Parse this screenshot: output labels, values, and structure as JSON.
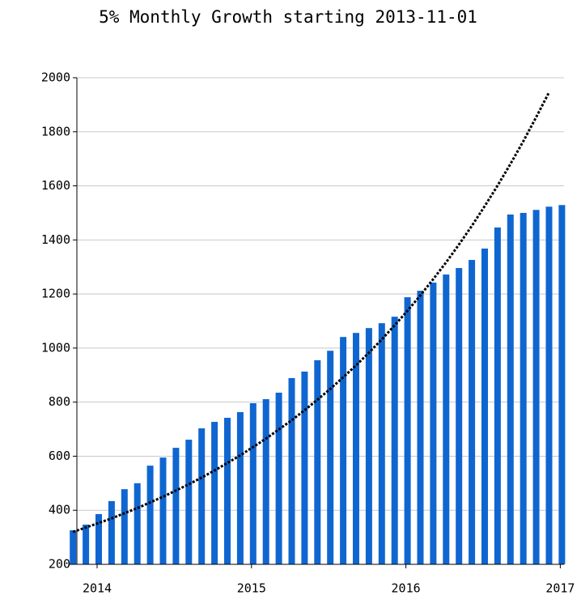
{
  "chart_data": {
    "type": "bar_line",
    "title": "5% Monthly Growth starting 2013-11-01",
    "categories": [
      null,
      null,
      "2014",
      null,
      null,
      null,
      null,
      null,
      null,
      null,
      null,
      null,
      null,
      null,
      "2015",
      null,
      null,
      null,
      null,
      null,
      null,
      null,
      null,
      null,
      null,
      null,
      "2016",
      null,
      null,
      null,
      null,
      null,
      null,
      null,
      null,
      null,
      null,
      null,
      "2017"
    ],
    "series": [
      {
        "type": "bar",
        "color": "#0f66d0",
        "values": [
          326,
          347,
          386,
          434,
          478,
          500,
          565,
          595,
          631,
          661,
          703,
          727,
          742,
          763,
          796,
          811,
          835,
          889,
          913,
          955,
          990,
          1041,
          1056,
          1074,
          1092,
          1116,
          1188,
          1212,
          1242,
          1272,
          1296,
          1326,
          1368,
          1446,
          1494,
          1500,
          1511,
          1523,
          1529
        ]
      },
      {
        "type": "line",
        "color": "#000000",
        "values": [
          320,
          336,
          353,
          370,
          389,
          408,
          429,
          450,
          473,
          496,
          521,
          547,
          575,
          603,
          634,
          665,
          699,
          733,
          770,
          809,
          849,
          892,
          936,
          983,
          1032,
          1084,
          1138,
          1195,
          1255,
          1317,
          1383,
          1452,
          1525,
          1601,
          1681,
          1765,
          1854,
          1946,
          null
        ]
      }
    ],
    "ylim": [
      200,
      2000
    ],
    "yticks": [
      200,
      400,
      600,
      800,
      1000,
      1200,
      1400,
      1600,
      1800,
      2000
    ],
    "grid": true
  }
}
